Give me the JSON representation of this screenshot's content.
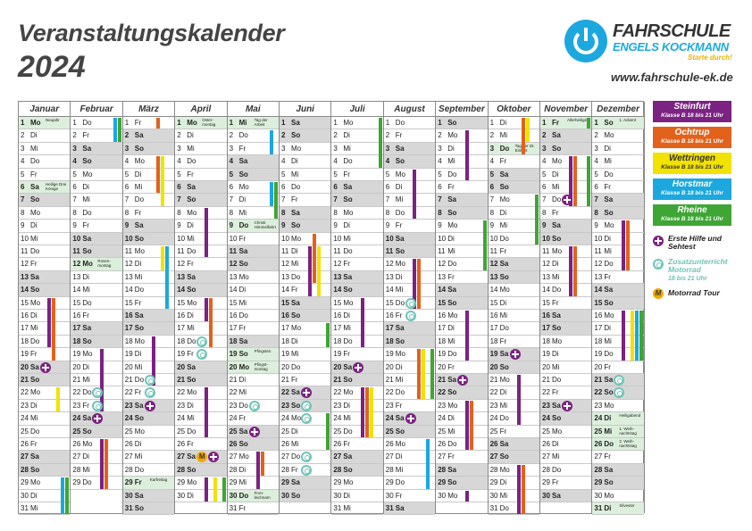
{
  "title": "Veranstaltungskalender",
  "year": "2024",
  "brand": {
    "line1": "FAHRSCHULE",
    "line2": "ENGELS KOCKMANN",
    "tagline": "Starte durch!",
    "url": "www.fahrschule-ek.de"
  },
  "colors": {
    "steinfurt": "#7b2282",
    "ochtrup": "#e2621c",
    "wettringen": "#f1e200",
    "horstmar": "#1ca8df",
    "rheine": "#3fa535",
    "holiday_bg": "#dcefdc",
    "weekend_bg": "#d7d7d7",
    "motorrad": "#f2a900"
  },
  "legend": {
    "locations": [
      {
        "key": "stein",
        "cls": "b-stein",
        "title": "Steinfurt",
        "sub": "Klasse B 18 bis 21 Uhr"
      },
      {
        "key": "och",
        "cls": "b-och",
        "title": "Ochtrup",
        "sub": "Klasse B 18 bis 21 Uhr"
      },
      {
        "key": "wett",
        "cls": "b-wett",
        "title": "Wettringen",
        "sub": "Klasse B 18 bis 21 Uhr"
      },
      {
        "key": "hor",
        "cls": "b-hor",
        "title": "Horstmar",
        "sub": "Klasse B 18 bis 21 Uhr"
      },
      {
        "key": "rhe",
        "cls": "b-rhe",
        "title": "Rheine",
        "sub": "Klasse B 18 bis 21 Uhr"
      }
    ],
    "erste_hilfe": "Erste Hilfe und Sehtest",
    "zusatz": "Zusatzunterricht Motorrad",
    "zusatz_sub": "18 bis 21 Uhr",
    "motorrad": "Motorrad Tour",
    "motorrad_symbol": "M"
  },
  "weekday_abbr": [
    "Mo",
    "Di",
    "Mi",
    "Do",
    "Fr",
    "Sa",
    "So"
  ],
  "months": [
    {
      "name": "Januar",
      "start": 0,
      "days": 31
    },
    {
      "name": "Februar",
      "start": 3,
      "days": 29
    },
    {
      "name": "März",
      "start": 4,
      "days": 31
    },
    {
      "name": "April",
      "start": 0,
      "days": 30
    },
    {
      "name": "Mai",
      "start": 2,
      "days": 31
    },
    {
      "name": "Juni",
      "start": 5,
      "days": 30
    },
    {
      "name": "Juli",
      "start": 0,
      "days": 31
    },
    {
      "name": "August",
      "start": 3,
      "days": 31
    },
    {
      "name": "September",
      "start": 6,
      "days": 30
    },
    {
      "name": "Oktober",
      "start": 1,
      "days": 31
    },
    {
      "name": "November",
      "start": 4,
      "days": 30
    },
    {
      "name": "Dezember",
      "start": 6,
      "days": 31
    }
  ],
  "holidays": [
    {
      "m": 0,
      "d": 1,
      "label": "Neujahr"
    },
    {
      "m": 0,
      "d": 6,
      "label": "Heilige Drei Könige"
    },
    {
      "m": 1,
      "d": 12,
      "label": "Rosen-montag"
    },
    {
      "m": 2,
      "d": 29,
      "label": "Karfreitag"
    },
    {
      "m": 3,
      "d": 1,
      "label": "Oster-montag"
    },
    {
      "m": 4,
      "d": 1,
      "label": "Tag der Arbeit"
    },
    {
      "m": 4,
      "d": 9,
      "label": "Christi Himmelfahrt"
    },
    {
      "m": 4,
      "d": 19,
      "label": "Pfingsten"
    },
    {
      "m": 4,
      "d": 20,
      "label": "Pfingst-montag"
    },
    {
      "m": 4,
      "d": 30,
      "label": "Fron-leichnam"
    },
    {
      "m": 9,
      "d": 3,
      "label": "Tag der Dt. Einheit"
    },
    {
      "m": 10,
      "d": 1,
      "label": "Allerheiligen"
    },
    {
      "m": 11,
      "d": 1,
      "label": "1. Advent"
    },
    {
      "m": 11,
      "d": 24,
      "label": "Heiligabend"
    },
    {
      "m": 11,
      "d": 25,
      "label": "1. Weih-nachtstag"
    },
    {
      "m": 11,
      "d": 26,
      "label": "2. Weih-nachtstag"
    },
    {
      "m": 11,
      "d": 31,
      "label": "Silvester"
    }
  ],
  "courses": [
    {
      "m": 0,
      "loc": "och",
      "from": 15,
      "to": 19
    },
    {
      "m": 0,
      "loc": "stein",
      "from": 15,
      "to": 18
    },
    {
      "m": 0,
      "loc": "wett",
      "from": 22,
      "to": 23
    },
    {
      "m": 0,
      "loc": "rhe",
      "from": 29,
      "to": 31
    },
    {
      "m": 0,
      "loc": "hor",
      "from": 29,
      "to": 31
    },
    {
      "m": 1,
      "loc": "hor",
      "from": 1,
      "to": 2
    },
    {
      "m": 1,
      "loc": "rhe",
      "from": 1,
      "to": 2
    },
    {
      "m": 1,
      "loc": "stein",
      "from": 19,
      "to": 23
    },
    {
      "m": 1,
      "loc": "och",
      "from": 26,
      "to": 29
    },
    {
      "m": 1,
      "loc": "stein",
      "from": 26,
      "to": 29
    },
    {
      "m": 2,
      "loc": "och",
      "from": 1,
      "to": 1
    },
    {
      "m": 2,
      "loc": "och",
      "from": 4,
      "to": 6
    },
    {
      "m": 2,
      "loc": "wett",
      "from": 4,
      "to": 7
    },
    {
      "m": 2,
      "loc": "hor",
      "from": 11,
      "to": 15
    },
    {
      "m": 2,
      "loc": "wett",
      "from": 11,
      "to": 12
    },
    {
      "m": 2,
      "loc": "stein",
      "from": 18,
      "to": 21
    },
    {
      "m": 3,
      "loc": "stein",
      "from": 8,
      "to": 11
    },
    {
      "m": 3,
      "loc": "och",
      "from": 15,
      "to": 18
    },
    {
      "m": 3,
      "loc": "stein",
      "from": 15,
      "to": 16
    },
    {
      "m": 3,
      "loc": "stein",
      "from": 22,
      "to": 25
    },
    {
      "m": 3,
      "loc": "stein",
      "from": 29,
      "to": 30
    },
    {
      "m": 3,
      "loc": "wett",
      "from": 29,
      "to": 30
    },
    {
      "m": 3,
      "loc": "rhe",
      "from": 29,
      "to": 30
    },
    {
      "m": 4,
      "loc": "hor",
      "from": 2,
      "to": 3
    },
    {
      "m": 4,
      "loc": "rhe",
      "from": 6,
      "to": 8
    },
    {
      "m": 4,
      "loc": "hor",
      "from": 6,
      "to": 7
    },
    {
      "m": 4,
      "loc": "stein",
      "from": 27,
      "to": 29
    },
    {
      "m": 4,
      "loc": "och",
      "from": 27,
      "to": 28
    },
    {
      "m": 5,
      "loc": "och",
      "from": 10,
      "to": 13
    },
    {
      "m": 5,
      "loc": "stein",
      "from": 11,
      "to": 14
    },
    {
      "m": 5,
      "loc": "wett",
      "from": 11,
      "to": 14
    },
    {
      "m": 5,
      "loc": "rhe",
      "from": 17,
      "to": 18
    },
    {
      "m": 5,
      "loc": "rhe",
      "from": 24,
      "to": 26
    },
    {
      "m": 6,
      "loc": "rhe",
      "from": 1,
      "to": 4
    },
    {
      "m": 6,
      "loc": "stein",
      "from": 15,
      "to": 18
    },
    {
      "m": 6,
      "loc": "och",
      "from": 22,
      "to": 25
    },
    {
      "m": 6,
      "loc": "stein",
      "from": 22,
      "to": 25
    },
    {
      "m": 6,
      "loc": "wett",
      "from": 22,
      "to": 25
    },
    {
      "m": 7,
      "loc": "stein",
      "from": 5,
      "to": 8
    },
    {
      "m": 7,
      "loc": "och",
      "from": 12,
      "to": 15
    },
    {
      "m": 7,
      "loc": "stein",
      "from": 12,
      "to": 15
    },
    {
      "m": 7,
      "loc": "och",
      "from": 19,
      "to": 22
    },
    {
      "m": 7,
      "loc": "wett",
      "from": 19,
      "to": 22
    },
    {
      "m": 7,
      "loc": "rhe",
      "from": 19,
      "to": 22
    },
    {
      "m": 7,
      "loc": "hor",
      "from": 26,
      "to": 29
    },
    {
      "m": 8,
      "loc": "stein",
      "from": 2,
      "to": 5
    },
    {
      "m": 8,
      "loc": "rhe",
      "from": 9,
      "to": 12
    },
    {
      "m": 8,
      "loc": "stein",
      "from": 16,
      "to": 19
    },
    {
      "m": 8,
      "loc": "och",
      "from": 23,
      "to": 26
    },
    {
      "m": 8,
      "loc": "stein",
      "from": 23,
      "to": 26
    },
    {
      "m": 8,
      "loc": "stein",
      "from": 30,
      "to": 30
    },
    {
      "m": 9,
      "loc": "och",
      "from": 1,
      "to": 3
    },
    {
      "m": 9,
      "loc": "wett",
      "from": 1,
      "to": 2
    },
    {
      "m": 9,
      "loc": "rhe",
      "from": 7,
      "to": 10
    },
    {
      "m": 9,
      "loc": "stein",
      "from": 21,
      "to": 24
    },
    {
      "m": 9,
      "loc": "och",
      "from": 28,
      "to": 31
    },
    {
      "m": 9,
      "loc": "stein",
      "from": 28,
      "to": 31
    },
    {
      "m": 10,
      "loc": "rhe",
      "from": 1,
      "to": 1
    },
    {
      "m": 10,
      "loc": "stein",
      "from": 4,
      "to": 7
    },
    {
      "m": 10,
      "loc": "och",
      "from": 4,
      "to": 7
    },
    {
      "m": 10,
      "loc": "rhe",
      "from": 4,
      "to": 7
    },
    {
      "m": 10,
      "loc": "stein",
      "from": 11,
      "to": 14
    },
    {
      "m": 10,
      "loc": "och",
      "from": 11,
      "to": 14
    },
    {
      "m": 11,
      "loc": "stein",
      "from": 9,
      "to": 12
    },
    {
      "m": 11,
      "loc": "och",
      "from": 9,
      "to": 12
    },
    {
      "m": 11,
      "loc": "stein",
      "from": 16,
      "to": 19
    },
    {
      "m": 11,
      "loc": "wett",
      "from": 16,
      "to": 19
    },
    {
      "m": 11,
      "loc": "hor",
      "from": 16,
      "to": 19
    },
    {
      "m": 11,
      "loc": "rhe",
      "from": 16,
      "to": 19
    }
  ],
  "events": [
    {
      "m": 0,
      "d": 20,
      "type": "eh"
    },
    {
      "m": 1,
      "d": 22,
      "type": "zu"
    },
    {
      "m": 1,
      "d": 23,
      "type": "zu"
    },
    {
      "m": 1,
      "d": 24,
      "type": "eh"
    },
    {
      "m": 2,
      "d": 21,
      "type": "zu"
    },
    {
      "m": 2,
      "d": 22,
      "type": "zu"
    },
    {
      "m": 2,
      "d": 23,
      "type": "eh"
    },
    {
      "m": 3,
      "d": 18,
      "type": "zu"
    },
    {
      "m": 3,
      "d": 19,
      "type": "zu"
    },
    {
      "m": 3,
      "d": 27,
      "type": "mt"
    },
    {
      "m": 3,
      "d": 27,
      "type": "eh"
    },
    {
      "m": 4,
      "d": 23,
      "type": "zu"
    },
    {
      "m": 4,
      "d": 25,
      "type": "eh"
    },
    {
      "m": 5,
      "d": 22,
      "type": "eh"
    },
    {
      "m": 5,
      "d": 23,
      "type": "zu"
    },
    {
      "m": 5,
      "d": 24,
      "type": "zu"
    },
    {
      "m": 5,
      "d": 27,
      "type": "zu"
    },
    {
      "m": 5,
      "d": 28,
      "type": "zu"
    },
    {
      "m": 6,
      "d": 20,
      "type": "eh"
    },
    {
      "m": 7,
      "d": 15,
      "type": "zu"
    },
    {
      "m": 7,
      "d": 16,
      "type": "zu"
    },
    {
      "m": 7,
      "d": 24,
      "type": "eh"
    },
    {
      "m": 8,
      "d": 21,
      "type": "eh"
    },
    {
      "m": 9,
      "d": 19,
      "type": "eh"
    },
    {
      "m": 10,
      "d": 7,
      "type": "eh"
    },
    {
      "m": 10,
      "d": 23,
      "type": "eh"
    },
    {
      "m": 11,
      "d": 21,
      "type": "zu"
    },
    {
      "m": 11,
      "d": 22,
      "type": "zu"
    }
  ]
}
